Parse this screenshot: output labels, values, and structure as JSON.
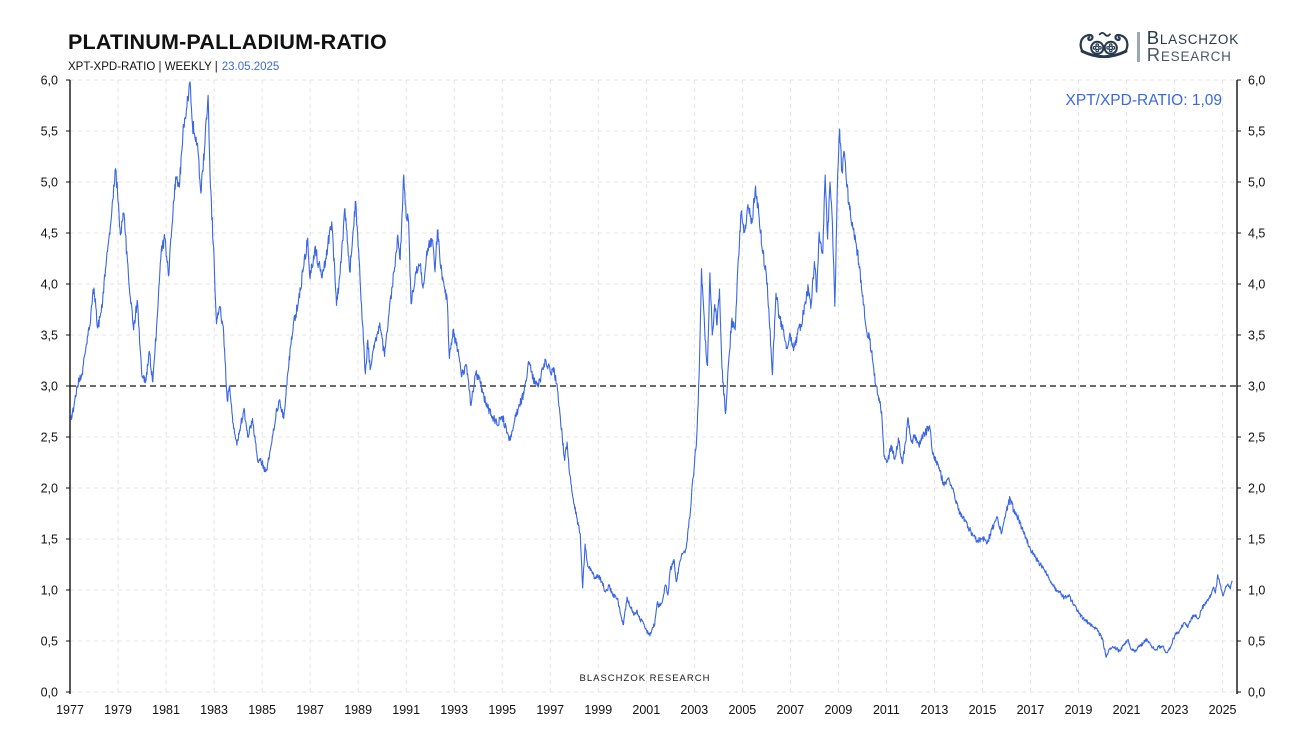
{
  "header": {
    "title": "PLATINUM-PALLADIUM-RATIO",
    "subtitle_prefix": "XPT-XPD-RATIO | WEEKLY |",
    "subtitle_date": "23.05.2025",
    "logo_line1": "BLASCHZOK",
    "logo_line2": "RESEARCH",
    "logo_icon": "viking-ship-icon"
  },
  "watermark": "BLASCHZOK  RESEARCH",
  "colors": {
    "accent_blue": "#3b68df",
    "line_blue": "#3a66e6",
    "logo_navy": "#26394e",
    "grid": "#e3e3e3",
    "ref_line": "#141414",
    "axis": "#111111",
    "text": "#111111"
  },
  "chart_data": {
    "type": "line",
    "title": "PLATINUM-PALLADIUM-RATIO",
    "series_label": "XPT/XPD-RATIO: 1,09",
    "current_value": "1,09",
    "xlabel": "",
    "ylabel": "",
    "xlim": [
      1977,
      2025.6
    ],
    "ylim": [
      0,
      6
    ],
    "grid": "dashed-light",
    "legend_position": "top-right",
    "reference_line": 3.0,
    "x_ticks": [
      1977,
      1979,
      1981,
      1983,
      1985,
      1987,
      1989,
      1991,
      1993,
      1995,
      1997,
      1999,
      2001,
      2003,
      2005,
      2007,
      2009,
      2011,
      2013,
      2015,
      2017,
      2019,
      2021,
      2023,
      2025
    ],
    "y_ticks": [
      0,
      0.5,
      1,
      1.5,
      2,
      2.5,
      3,
      3.5,
      4,
      4.5,
      5,
      5.5,
      6
    ],
    "y_tick_labels": [
      "0,0",
      "0,5",
      "1,0",
      "1,5",
      "2,0",
      "2,5",
      "3,0",
      "3,5",
      "4,0",
      "4,5",
      "5,0",
      "5,5",
      "6,0"
    ],
    "points": [
      [
        1977.0,
        2.72
      ],
      [
        1977.08,
        2.69
      ],
      [
        1977.3,
        3.0
      ],
      [
        1977.5,
        3.12
      ],
      [
        1977.65,
        3.35
      ],
      [
        1977.8,
        3.55
      ],
      [
        1977.9,
        3.79
      ],
      [
        1978.0,
        3.96
      ],
      [
        1978.15,
        3.57
      ],
      [
        1978.3,
        3.72
      ],
      [
        1978.5,
        4.18
      ],
      [
        1978.7,
        4.6
      ],
      [
        1978.9,
        5.13
      ],
      [
        1979.1,
        4.48
      ],
      [
        1979.25,
        4.69
      ],
      [
        1979.45,
        4.02
      ],
      [
        1979.65,
        3.55
      ],
      [
        1979.8,
        3.84
      ],
      [
        1980.0,
        3.09
      ],
      [
        1980.15,
        3.04
      ],
      [
        1980.3,
        3.34
      ],
      [
        1980.45,
        3.04
      ],
      [
        1980.6,
        3.55
      ],
      [
        1980.8,
        4.32
      ],
      [
        1980.95,
        4.45
      ],
      [
        1981.1,
        4.08
      ],
      [
        1981.25,
        4.58
      ],
      [
        1981.4,
        5.05
      ],
      [
        1981.55,
        4.95
      ],
      [
        1981.7,
        5.47
      ],
      [
        1981.85,
        5.72
      ],
      [
        1982.0,
        5.98
      ],
      [
        1982.1,
        5.56
      ],
      [
        1982.25,
        5.44
      ],
      [
        1982.35,
        5.25
      ],
      [
        1982.45,
        4.89
      ],
      [
        1982.6,
        5.32
      ],
      [
        1982.75,
        5.85
      ],
      [
        1982.85,
        4.94
      ],
      [
        1983.0,
        4.25
      ],
      [
        1983.1,
        3.61
      ],
      [
        1983.25,
        3.77
      ],
      [
        1983.4,
        3.51
      ],
      [
        1983.55,
        2.85
      ],
      [
        1983.65,
        3.0
      ],
      [
        1983.8,
        2.63
      ],
      [
        1983.95,
        2.42
      ],
      [
        1984.1,
        2.6
      ],
      [
        1984.25,
        2.78
      ],
      [
        1984.4,
        2.5
      ],
      [
        1984.6,
        2.68
      ],
      [
        1984.8,
        2.29
      ],
      [
        1985.0,
        2.24
      ],
      [
        1985.15,
        2.16
      ],
      [
        1985.3,
        2.3
      ],
      [
        1985.45,
        2.52
      ],
      [
        1985.6,
        2.78
      ],
      [
        1985.75,
        2.84
      ],
      [
        1985.9,
        2.68
      ],
      [
        1986.05,
        3.09
      ],
      [
        1986.3,
        3.6
      ],
      [
        1986.5,
        3.8
      ],
      [
        1986.7,
        4.12
      ],
      [
        1986.9,
        4.45
      ],
      [
        1987.0,
        4.05
      ],
      [
        1987.2,
        4.36
      ],
      [
        1987.35,
        4.2
      ],
      [
        1987.5,
        4.06
      ],
      [
        1987.65,
        4.25
      ],
      [
        1987.8,
        4.48
      ],
      [
        1987.9,
        4.61
      ],
      [
        1988.1,
        3.79
      ],
      [
        1988.25,
        4.1
      ],
      [
        1988.45,
        4.74
      ],
      [
        1988.65,
        4.12
      ],
      [
        1988.9,
        4.81
      ],
      [
        1989.1,
        3.96
      ],
      [
        1989.3,
        3.12
      ],
      [
        1989.4,
        3.45
      ],
      [
        1989.5,
        3.16
      ],
      [
        1989.65,
        3.4
      ],
      [
        1989.8,
        3.51
      ],
      [
        1989.9,
        3.62
      ],
      [
        1990.1,
        3.29
      ],
      [
        1990.3,
        3.76
      ],
      [
        1990.5,
        4.12
      ],
      [
        1990.65,
        4.48
      ],
      [
        1990.75,
        4.24
      ],
      [
        1990.9,
        5.07
      ],
      [
        1991.0,
        4.65
      ],
      [
        1991.1,
        4.61
      ],
      [
        1991.2,
        3.81
      ],
      [
        1991.4,
        4.12
      ],
      [
        1991.6,
        4.2
      ],
      [
        1991.7,
        3.96
      ],
      [
        1991.9,
        4.35
      ],
      [
        1992.1,
        4.43
      ],
      [
        1992.2,
        4.12
      ],
      [
        1992.3,
        4.53
      ],
      [
        1992.5,
        4.04
      ],
      [
        1992.7,
        3.87
      ],
      [
        1992.8,
        3.27
      ],
      [
        1992.95,
        3.55
      ],
      [
        1993.15,
        3.34
      ],
      [
        1993.3,
        3.09
      ],
      [
        1993.5,
        3.21
      ],
      [
        1993.7,
        2.81
      ],
      [
        1993.9,
        3.13
      ],
      [
        1994.1,
        3.02
      ],
      [
        1994.3,
        2.84
      ],
      [
        1994.6,
        2.7
      ],
      [
        1994.8,
        2.62
      ],
      [
        1995.0,
        2.7
      ],
      [
        1995.3,
        2.47
      ],
      [
        1995.5,
        2.64
      ],
      [
        1995.7,
        2.82
      ],
      [
        1995.9,
        2.92
      ],
      [
        1996.1,
        3.24
      ],
      [
        1996.3,
        3.06
      ],
      [
        1996.5,
        2.99
      ],
      [
        1996.8,
        3.26
      ],
      [
        1997.0,
        3.14
      ],
      [
        1997.15,
        3.18
      ],
      [
        1997.3,
        2.96
      ],
      [
        1997.5,
        2.5
      ],
      [
        1997.6,
        2.27
      ],
      [
        1997.7,
        2.45
      ],
      [
        1997.8,
        2.14
      ],
      [
        1998.0,
        1.84
      ],
      [
        1998.1,
        1.71
      ],
      [
        1998.25,
        1.55
      ],
      [
        1998.35,
        1.02
      ],
      [
        1998.45,
        1.45
      ],
      [
        1998.55,
        1.26
      ],
      [
        1998.7,
        1.2
      ],
      [
        1998.85,
        1.12
      ],
      [
        1999.0,
        1.14
      ],
      [
        1999.15,
        1.08
      ],
      [
        1999.3,
        0.98
      ],
      [
        1999.45,
        1.04
      ],
      [
        1999.6,
        0.95
      ],
      [
        1999.8,
        0.92
      ],
      [
        1999.95,
        0.74
      ],
      [
        2000.05,
        0.66
      ],
      [
        2000.2,
        0.93
      ],
      [
        2000.35,
        0.83
      ],
      [
        2000.5,
        0.76
      ],
      [
        2000.6,
        0.8
      ],
      [
        2000.75,
        0.71
      ],
      [
        2000.9,
        0.67
      ],
      [
        2001.0,
        0.61
      ],
      [
        2001.15,
        0.55
      ],
      [
        2001.25,
        0.63
      ],
      [
        2001.35,
        0.66
      ],
      [
        2001.45,
        0.87
      ],
      [
        2001.55,
        0.84
      ],
      [
        2001.7,
        0.92
      ],
      [
        2001.8,
        1.05
      ],
      [
        2001.9,
        0.95
      ],
      [
        2002.0,
        1.2
      ],
      [
        2002.15,
        1.3
      ],
      [
        2002.25,
        1.08
      ],
      [
        2002.4,
        1.28
      ],
      [
        2002.5,
        1.35
      ],
      [
        2002.65,
        1.4
      ],
      [
        2002.8,
        1.7
      ],
      [
        2002.95,
        2.1
      ],
      [
        2003.1,
        2.5
      ],
      [
        2003.2,
        3.1
      ],
      [
        2003.3,
        4.15
      ],
      [
        2003.45,
        3.45
      ],
      [
        2003.55,
        3.2
      ],
      [
        2003.65,
        4.11
      ],
      [
        2003.75,
        3.5
      ],
      [
        2003.85,
        3.8
      ],
      [
        2003.95,
        3.6
      ],
      [
        2004.05,
        3.95
      ],
      [
        2004.15,
        3.18
      ],
      [
        2004.3,
        2.73
      ],
      [
        2004.45,
        3.3
      ],
      [
        2004.55,
        3.63
      ],
      [
        2004.7,
        3.55
      ],
      [
        2004.8,
        4.1
      ],
      [
        2004.95,
        4.7
      ],
      [
        2005.1,
        4.51
      ],
      [
        2005.25,
        4.75
      ],
      [
        2005.4,
        4.6
      ],
      [
        2005.55,
        4.96
      ],
      [
        2005.7,
        4.65
      ],
      [
        2005.85,
        4.3
      ],
      [
        2006.0,
        4.09
      ],
      [
        2006.1,
        3.76
      ],
      [
        2006.25,
        3.11
      ],
      [
        2006.4,
        3.91
      ],
      [
        2006.55,
        3.66
      ],
      [
        2006.7,
        3.55
      ],
      [
        2006.85,
        3.38
      ],
      [
        2007.0,
        3.5
      ],
      [
        2007.15,
        3.38
      ],
      [
        2007.3,
        3.51
      ],
      [
        2007.45,
        3.6
      ],
      [
        2007.6,
        3.8
      ],
      [
        2007.75,
        3.96
      ],
      [
        2007.85,
        3.76
      ],
      [
        2008.0,
        4.22
      ],
      [
        2008.1,
        3.92
      ],
      [
        2008.2,
        4.51
      ],
      [
        2008.35,
        4.3
      ],
      [
        2008.45,
        5.07
      ],
      [
        2008.55,
        4.44
      ],
      [
        2008.65,
        5.0
      ],
      [
        2008.75,
        4.6
      ],
      [
        2008.85,
        3.78
      ],
      [
        2008.95,
        4.9
      ],
      [
        2009.05,
        5.52
      ],
      [
        2009.15,
        5.1
      ],
      [
        2009.25,
        5.29
      ],
      [
        2009.35,
        4.95
      ],
      [
        2009.45,
        4.8
      ],
      [
        2009.6,
        4.55
      ],
      [
        2009.7,
        4.48
      ],
      [
        2009.85,
        4.2
      ],
      [
        2010.0,
        3.88
      ],
      [
        2010.15,
        3.58
      ],
      [
        2010.3,
        3.45
      ],
      [
        2010.45,
        3.21
      ],
      [
        2010.55,
        3.01
      ],
      [
        2010.7,
        2.88
      ],
      [
        2010.8,
        2.75
      ],
      [
        2010.9,
        2.31
      ],
      [
        2011.05,
        2.26
      ],
      [
        2011.2,
        2.42
      ],
      [
        2011.35,
        2.28
      ],
      [
        2011.5,
        2.49
      ],
      [
        2011.65,
        2.25
      ],
      [
        2011.8,
        2.45
      ],
      [
        2011.9,
        2.69
      ],
      [
        2012.05,
        2.45
      ],
      [
        2012.2,
        2.52
      ],
      [
        2012.35,
        2.42
      ],
      [
        2012.5,
        2.5
      ],
      [
        2012.65,
        2.55
      ],
      [
        2012.8,
        2.61
      ],
      [
        2012.9,
        2.38
      ],
      [
        2013.0,
        2.31
      ],
      [
        2013.2,
        2.2
      ],
      [
        2013.4,
        2.02
      ],
      [
        2013.6,
        2.1
      ],
      [
        2013.8,
        1.96
      ],
      [
        2014.0,
        1.78
      ],
      [
        2014.2,
        1.72
      ],
      [
        2014.4,
        1.62
      ],
      [
        2014.6,
        1.53
      ],
      [
        2014.8,
        1.48
      ],
      [
        2015.0,
        1.51
      ],
      [
        2015.2,
        1.46
      ],
      [
        2015.4,
        1.6
      ],
      [
        2015.6,
        1.72
      ],
      [
        2015.8,
        1.56
      ],
      [
        2016.0,
        1.78
      ],
      [
        2016.15,
        1.9
      ],
      [
        2016.3,
        1.78
      ],
      [
        2016.5,
        1.7
      ],
      [
        2016.65,
        1.6
      ],
      [
        2016.8,
        1.52
      ],
      [
        2017.0,
        1.4
      ],
      [
        2017.2,
        1.32
      ],
      [
        2017.4,
        1.25
      ],
      [
        2017.6,
        1.18
      ],
      [
        2017.8,
        1.1
      ],
      [
        2018.0,
        1.02
      ],
      [
        2018.2,
        0.98
      ],
      [
        2018.4,
        0.92
      ],
      [
        2018.6,
        0.95
      ],
      [
        2018.8,
        0.85
      ],
      [
        2019.0,
        0.78
      ],
      [
        2019.2,
        0.72
      ],
      [
        2019.4,
        0.68
      ],
      [
        2019.6,
        0.64
      ],
      [
        2019.8,
        0.6
      ],
      [
        2020.0,
        0.52
      ],
      [
        2020.15,
        0.34
      ],
      [
        2020.3,
        0.42
      ],
      [
        2020.5,
        0.44
      ],
      [
        2020.7,
        0.4
      ],
      [
        2020.9,
        0.46
      ],
      [
        2021.05,
        0.51
      ],
      [
        2021.2,
        0.42
      ],
      [
        2021.35,
        0.39
      ],
      [
        2021.5,
        0.44
      ],
      [
        2021.7,
        0.48
      ],
      [
        2021.85,
        0.52
      ],
      [
        2022.0,
        0.46
      ],
      [
        2022.2,
        0.41
      ],
      [
        2022.35,
        0.44
      ],
      [
        2022.5,
        0.45
      ],
      [
        2022.65,
        0.39
      ],
      [
        2022.8,
        0.42
      ],
      [
        2023.0,
        0.55
      ],
      [
        2023.2,
        0.6
      ],
      [
        2023.4,
        0.68
      ],
      [
        2023.55,
        0.63
      ],
      [
        2023.7,
        0.73
      ],
      [
        2023.85,
        0.75
      ],
      [
        2024.0,
        0.72
      ],
      [
        2024.15,
        0.82
      ],
      [
        2024.3,
        0.88
      ],
      [
        2024.45,
        0.92
      ],
      [
        2024.6,
        1.02
      ],
      [
        2024.7,
        0.97
      ],
      [
        2024.8,
        1.15
      ],
      [
        2024.9,
        1.05
      ],
      [
        2025.0,
        0.95
      ],
      [
        2025.1,
        1.0
      ],
      [
        2025.2,
        1.05
      ],
      [
        2025.3,
        1.02
      ],
      [
        2025.4,
        1.09
      ]
    ]
  }
}
